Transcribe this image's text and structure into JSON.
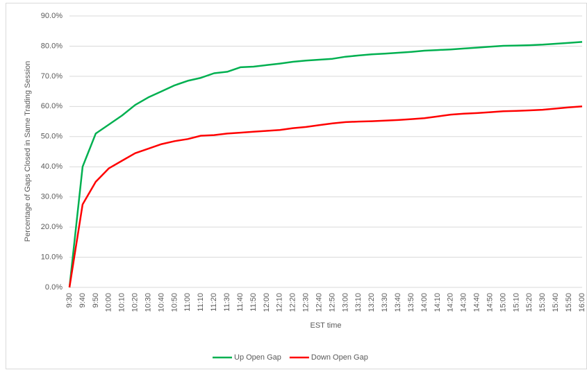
{
  "chart_data": {
    "type": "line",
    "y_label": "Percentage of Gaps Closed in Same Trading Session",
    "x_label": "EST time",
    "categories": [
      "9:30",
      "9:40",
      "9:50",
      "10:00",
      "10:10",
      "10:20",
      "10:30",
      "10:40",
      "10:50",
      "11:00",
      "11:10",
      "11:20",
      "11:30",
      "11:40",
      "11:50",
      "12:00",
      "12:10",
      "12:20",
      "12:30",
      "12:40",
      "12:50",
      "13:00",
      "13:10",
      "13:20",
      "13:30",
      "13:40",
      "13:50",
      "14:00",
      "14:10",
      "14:20",
      "14:30",
      "14:40",
      "14:50",
      "15:00",
      "15:10",
      "15:20",
      "15:30",
      "15:40",
      "15:50",
      "16:00"
    ],
    "series": [
      {
        "name": "Up Open Gap",
        "color": "#00b050",
        "values": [
          0,
          40,
          51,
          54,
          57,
          60.5,
          63,
          65,
          67,
          68.5,
          69.5,
          71,
          71.5,
          73,
          73.2,
          73.7,
          74.2,
          74.8,
          75.2,
          75.5,
          75.8,
          76.5,
          76.9,
          77.3,
          77.5,
          77.8,
          78.1,
          78.5,
          78.7,
          78.9,
          79.2,
          79.5,
          79.8,
          80.1,
          80.2,
          80.3,
          80.5,
          80.8,
          81.1,
          81.4
        ]
      },
      {
        "name": "Down Open Gap",
        "color": "#ff0000",
        "values": [
          0,
          27.5,
          35,
          39.5,
          42,
          44.5,
          46,
          47.5,
          48.5,
          49.2,
          50.3,
          50.5,
          51,
          51.3,
          51.6,
          51.9,
          52.2,
          52.8,
          53.2,
          53.8,
          54.4,
          54.8,
          55,
          55.1,
          55.3,
          55.5,
          55.8,
          56.1,
          56.7,
          57.3,
          57.6,
          57.8,
          58.1,
          58.4,
          58.5,
          58.7,
          58.9,
          59.3,
          59.7,
          60
        ]
      }
    ],
    "ylim": [
      0,
      90
    ],
    "yticks": [
      {
        "value": 0,
        "label": "0.0%"
      },
      {
        "value": 10,
        "label": "10.0%"
      },
      {
        "value": 20,
        "label": "20.0%"
      },
      {
        "value": 30,
        "label": "30.0%"
      },
      {
        "value": 40,
        "label": "40.0%"
      },
      {
        "value": 50,
        "label": "50.0%"
      },
      {
        "value": 60,
        "label": "60.0%"
      },
      {
        "value": 70,
        "label": "70.0%"
      },
      {
        "value": 80,
        "label": "80.0%"
      },
      {
        "value": 90,
        "label": "90.0%"
      }
    ],
    "grid": true,
    "legend": "bottom"
  }
}
